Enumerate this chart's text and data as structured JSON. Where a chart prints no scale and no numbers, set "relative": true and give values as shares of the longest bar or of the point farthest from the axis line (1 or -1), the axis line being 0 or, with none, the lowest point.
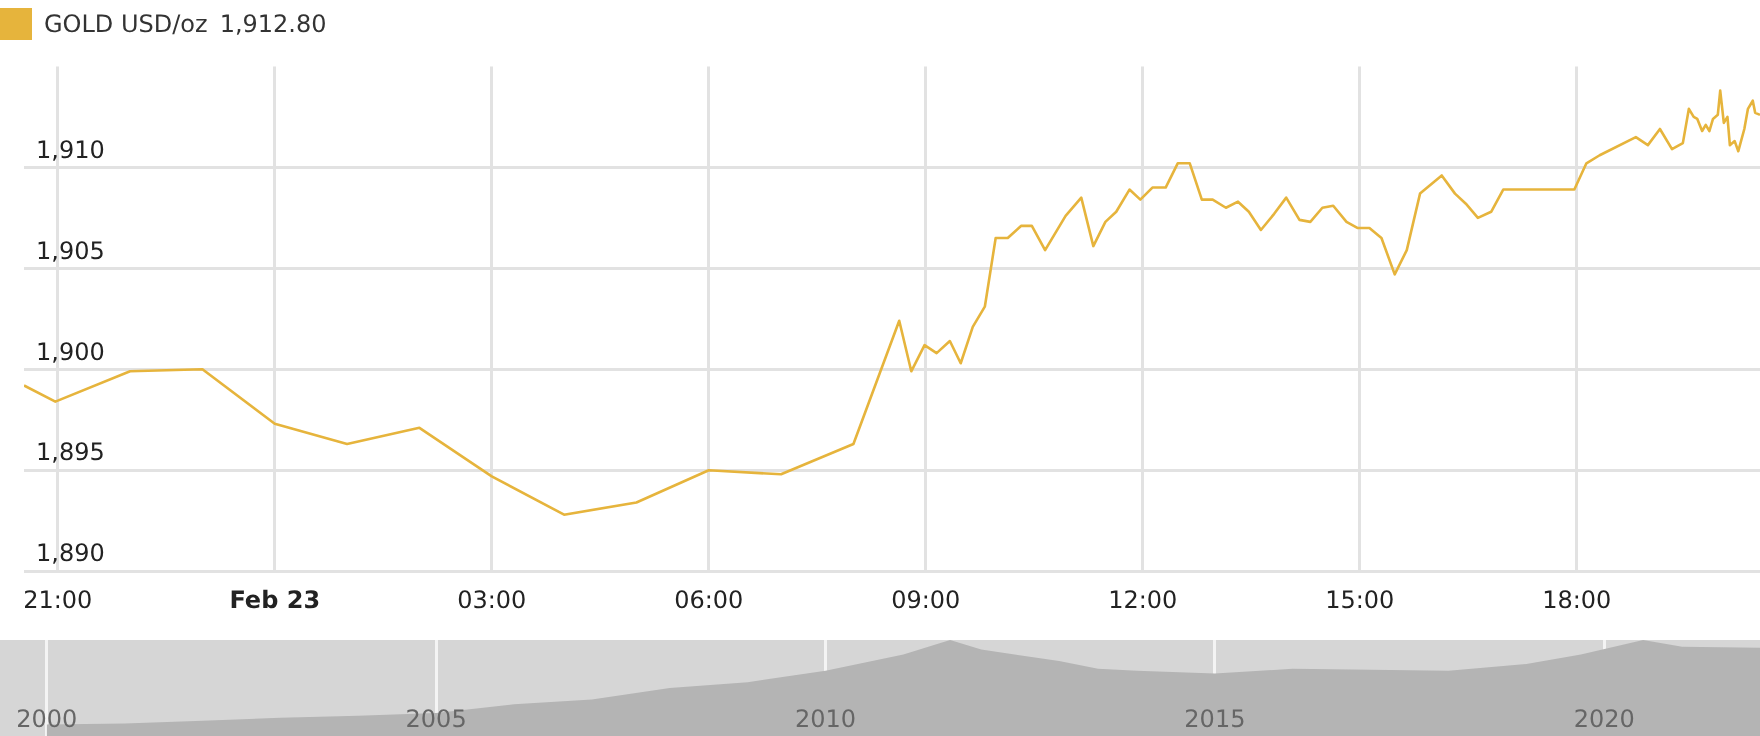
{
  "chart_data": [
    {
      "type": "line",
      "legend": "top left",
      "grid": true,
      "annotations": [
        "1,912.80"
      ],
      "x": [
        "--02-22T20:32",
        "--02-22T20:58",
        "--02-22T22:00",
        "--02-22T23:00",
        "--02-23T00:00",
        "--02-23T01:00",
        "--02-23T02:00",
        "--02-23T03:00",
        "--02-23T04:00",
        "--02-23T05:00",
        "--02-23T06:00",
        "--02-23T07:00",
        "--02-23T08:00",
        "--02-23T08:38",
        "--02-23T08:48",
        "--02-23T08:59",
        "--02-23T09:09",
        "--02-23T09:20",
        "--02-23T09:29",
        "--02-23T09:39",
        "--02-23T09:49",
        "--02-23T09:58",
        "--02-23T10:08",
        "--02-23T10:19",
        "--02-23T10:28",
        "--02-23T10:39",
        "--02-23T10:56",
        "--02-23T11:09",
        "--02-23T11:19",
        "--02-23T11:29",
        "--02-23T11:38",
        "--02-23T11:49",
        "--02-23T11:58",
        "--02-23T12:08",
        "--02-23T12:19",
        "--02-23T12:29",
        "--02-23T12:39",
        "--02-23T12:49",
        "--02-23T12:58",
        "--02-23T13:09",
        "--02-23T13:19",
        "--02-23T13:28",
        "--02-23T13:38",
        "--02-23T13:49",
        "--02-23T13:59",
        "--02-23T14:10",
        "--02-23T14:19",
        "--02-23T14:29",
        "--02-23T14:38",
        "--02-23T14:49",
        "--02-23T14:58",
        "--02-23T15:08",
        "--02-23T15:18",
        "--02-23T15:29",
        "--02-23T15:39",
        "--02-23T15:50",
        "--02-23T16:08",
        "--02-23T16:19",
        "--02-23T16:28",
        "--02-23T16:38",
        "--02-23T16:49",
        "--02-23T16:59",
        "--02-23T17:58",
        "--02-23T18:08",
        "--02-23T18:19",
        "--02-23T18:49",
        "--02-23T18:59",
        "--02-23T19:09",
        "--02-23T19:19",
        "--02-23T19:28",
        "--02-23T19:33",
        "--02-23T19:37",
        "--02-23T19:40",
        "--02-23T19:44",
        "--02-23T19:47",
        "--02-23T19:50",
        "--02-23T19:53",
        "--02-23T19:57",
        "--02-23T19:59",
        "--02-23T20:02",
        "--02-23T20:05",
        "--02-23T20:07",
        "--02-23T20:11",
        "--02-23T20:14",
        "--02-23T20:19",
        "--02-23T20:22",
        "--02-23T20:26",
        "--02-23T20:28",
        "--02-23T20:32"
      ],
      "series": [
        {
          "name": "GOLD USD/oz",
          "color": "#e6b43c",
          "values": [
            1899.2,
            1898.4,
            1899.9,
            1900.0,
            1897.3,
            1896.3,
            1897.1,
            1894.7,
            1892.8,
            1893.4,
            1895.0,
            1894.8,
            1896.3,
            1902.4,
            1899.9,
            1901.2,
            1900.8,
            1901.4,
            1900.3,
            1902.1,
            1903.1,
            1906.5,
            1906.5,
            1907.1,
            1907.1,
            1905.9,
            1907.6,
            1908.5,
            1906.1,
            1907.3,
            1907.8,
            1908.9,
            1908.4,
            1909.0,
            1909.0,
            1910.2,
            1910.2,
            1908.4,
            1908.4,
            1908.0,
            1908.3,
            1907.8,
            1906.9,
            1907.7,
            1908.5,
            1907.4,
            1907.3,
            1908.0,
            1908.1,
            1907.3,
            1907.0,
            1907.0,
            1906.5,
            1904.7,
            1905.9,
            1908.7,
            1909.6,
            1908.7,
            1908.2,
            1907.5,
            1907.8,
            1908.9,
            1908.9,
            1910.2,
            1910.6,
            1911.5,
            1911.1,
            1911.9,
            1910.9,
            1911.2,
            1912.9,
            1912.5,
            1912.4,
            1911.8,
            1912.1,
            1911.8,
            1912.4,
            1912.6,
            1913.8,
            1912.2,
            1912.5,
            1911.1,
            1911.3,
            1910.8,
            1911.9,
            1912.9,
            1913.3,
            1912.7,
            1912.6
          ]
        }
      ],
      "xlim": [
        "--02-22T20:32",
        "--02-23T20:32"
      ],
      "xticks": [
        {
          "value": "--02-22T21:00",
          "label": "21:00"
        },
        {
          "value": "--02-23T00:00",
          "label": "Feb 23"
        },
        {
          "value": "--02-23T03:00",
          "label": "03:00"
        },
        {
          "value": "--02-23T06:00",
          "label": "06:00"
        },
        {
          "value": "--02-23T09:00",
          "label": "09:00"
        },
        {
          "value": "--02-23T12:00",
          "label": "12:00"
        },
        {
          "value": "--02-23T15:00",
          "label": "15:00"
        },
        {
          "value": "--02-23T18:00",
          "label": "18:00"
        }
      ],
      "ylim": [
        1890,
        1915
      ],
      "yticks": [
        {
          "value": 1890,
          "label": "1,890"
        },
        {
          "value": 1895,
          "label": "1,895"
        },
        {
          "value": 1900,
          "label": "1,900"
        },
        {
          "value": 1905,
          "label": "1,905"
        },
        {
          "value": 1910,
          "label": "1,910"
        }
      ]
    },
    {
      "type": "area",
      "relative": true,
      "grid": "x",
      "color": "#b4b4b4",
      "x": [
        2000,
        2001,
        2002,
        2003,
        2004,
        2005,
        2006,
        2007,
        2008,
        2009,
        2010,
        2011,
        2011.6,
        2012,
        2013,
        2013.5,
        2014,
        2015,
        2016,
        2017,
        2018,
        2019,
        2019.7,
        2020.5,
        2021,
        2022
      ],
      "values": [
        0.12,
        0.13,
        0.16,
        0.19,
        0.21,
        0.24,
        0.33,
        0.38,
        0.5,
        0.56,
        0.68,
        0.85,
        1.0,
        0.9,
        0.78,
        0.7,
        0.68,
        0.65,
        0.7,
        0.69,
        0.68,
        0.75,
        0.85,
        1.0,
        0.93,
        0.92
      ],
      "xlim": [
        1999.4,
        2022
      ],
      "xticks": [
        2000,
        2005,
        2010,
        2015,
        2020
      ]
    }
  ]
}
